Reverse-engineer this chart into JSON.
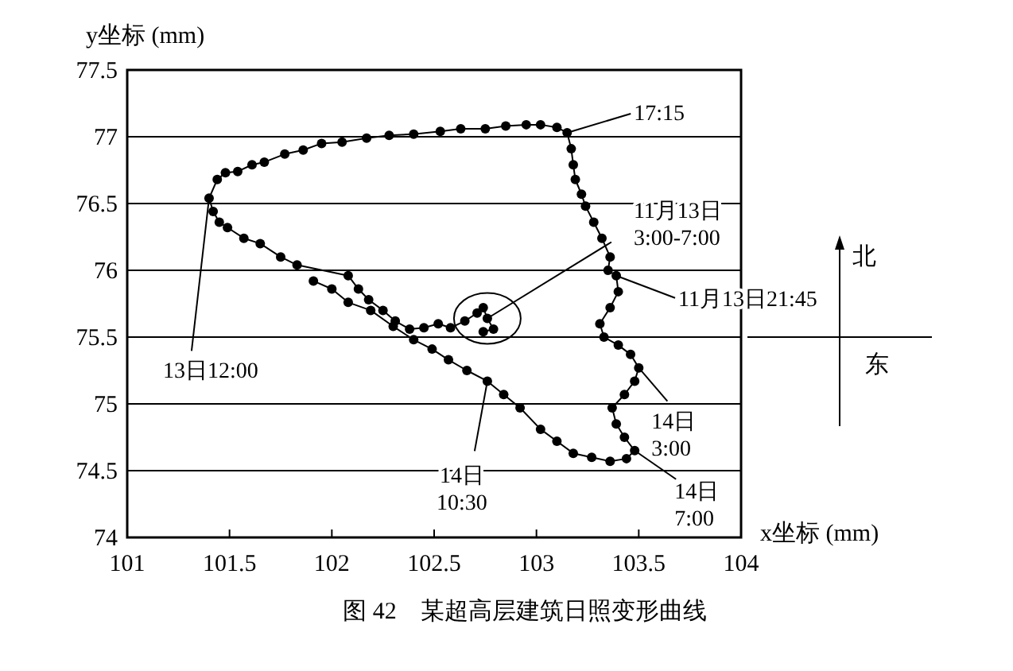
{
  "chart_data": {
    "type": "line",
    "title": "图 42　某超高层建筑日照变形曲线",
    "xlabel": "x坐标 (mm)",
    "ylabel": "y坐标 (mm)",
    "xlim": [
      101,
      104
    ],
    "ylim": [
      74,
      77.5
    ],
    "xticks": [
      101,
      101.5,
      102,
      102.5,
      103,
      103.5,
      104
    ],
    "yticks": [
      74,
      74.5,
      75,
      75.5,
      76,
      76.5,
      77,
      77.5
    ],
    "grid": "y",
    "marker": "circle",
    "line_style": "solid",
    "series": [
      {
        "color": "#000000",
        "x": [
          102.74,
          102.79,
          102.76,
          102.74,
          102.71,
          102.65,
          102.58,
          102.52,
          102.45,
          102.38,
          102.31,
          102.25,
          102.18,
          102.13,
          102.08,
          101.83,
          101.75,
          101.65,
          101.57,
          101.49,
          101.45,
          101.42,
          101.4,
          101.44,
          101.48,
          101.54,
          101.61,
          101.67,
          101.77,
          101.86,
          101.95,
          102.05,
          102.17,
          102.28,
          102.4,
          102.53,
          102.63,
          102.75,
          102.85,
          102.95,
          103.02,
          103.1,
          103.15,
          103.17,
          103.18,
          103.19,
          103.22,
          103.24,
          103.28,
          103.32,
          103.36,
          103.35,
          103.39,
          103.4,
          103.36,
          103.31,
          103.33,
          103.4,
          103.46,
          103.5,
          103.48,
          103.43,
          103.37,
          103.39,
          103.43,
          103.48,
          103.44,
          103.36,
          103.27,
          103.18,
          103.1,
          103.02,
          102.92,
          102.84,
          102.76,
          102.66,
          102.57,
          102.49,
          102.4,
          102.3,
          102.19,
          102.08,
          102.0,
          101.91
        ],
        "values": [
          75.54,
          75.56,
          75.64,
          75.72,
          75.68,
          75.62,
          75.57,
          75.6,
          75.57,
          75.56,
          75.62,
          75.7,
          75.78,
          75.86,
          75.96,
          76.04,
          76.1,
          76.2,
          76.24,
          76.32,
          76.36,
          76.44,
          76.54,
          76.68,
          76.73,
          76.74,
          76.79,
          76.81,
          76.87,
          76.9,
          76.95,
          76.96,
          76.99,
          77.01,
          77.02,
          77.04,
          77.06,
          77.06,
          77.08,
          77.09,
          77.09,
          77.07,
          77.03,
          76.91,
          76.79,
          76.68,
          76.57,
          76.48,
          76.36,
          76.24,
          76.1,
          76.0,
          75.96,
          75.84,
          75.72,
          75.6,
          75.5,
          75.44,
          75.37,
          75.27,
          75.17,
          75.07,
          74.97,
          74.85,
          74.75,
          74.65,
          74.59,
          74.57,
          74.6,
          74.63,
          74.72,
          74.81,
          74.97,
          75.07,
          75.17,
          75.25,
          75.33,
          75.41,
          75.48,
          75.58,
          75.7,
          75.76,
          75.86,
          75.92
        ]
      }
    ],
    "annotations": [
      {
        "text": "17:15",
        "x": 103.15,
        "y": 77.03
      },
      {
        "text": "11月13日\n3:00-7:00",
        "x": 102.76,
        "y": 75.64
      },
      {
        "text": "11月13日21:45",
        "x": 103.39,
        "y": 75.96
      },
      {
        "text": "14日\n3:00",
        "x": 103.5,
        "y": 75.27
      },
      {
        "text": "14日\n7:00",
        "x": 103.48,
        "y": 74.65
      },
      {
        "text": "14日\n10:30",
        "x": 102.76,
        "y": 75.17
      },
      {
        "text": "13日12:00",
        "x": 101.4,
        "y": 76.54
      },
      "北",
      "东"
    ]
  }
}
